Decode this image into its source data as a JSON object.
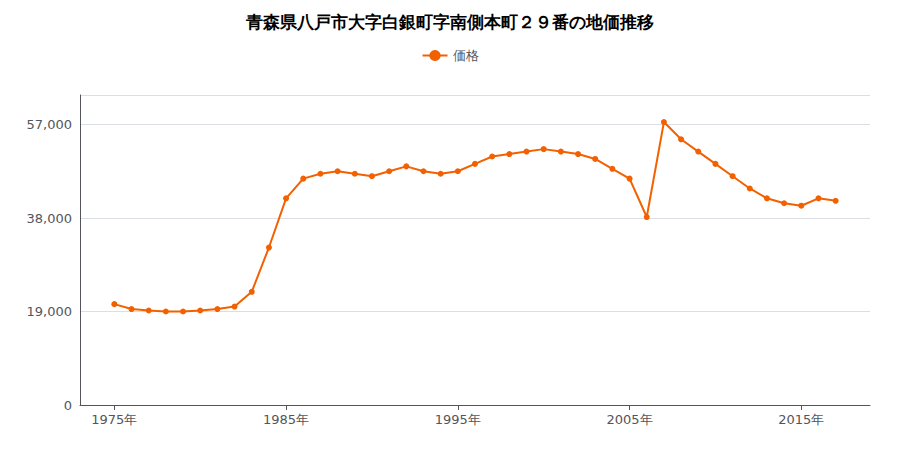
{
  "chart_data": {
    "type": "line",
    "title": "青森県八戸市大字白銀町字南側本町２９番の地価推移",
    "series": [
      {
        "name": "価格",
        "color": "#f26000",
        "marker": "circle",
        "values": [
          20500,
          19500,
          19200,
          19000,
          19000,
          19200,
          19500,
          20000,
          23000,
          32000,
          42000,
          46000,
          47000,
          47500,
          47000,
          46500,
          47500,
          48500,
          47500,
          47000,
          47500,
          49000,
          50500,
          51000,
          51500,
          52000,
          51500,
          51000,
          50000,
          48000,
          46000,
          38200,
          57500,
          54000,
          51500,
          49000,
          46500,
          44000,
          42000,
          41000,
          40500,
          42000,
          41500
        ]
      }
    ],
    "x": [
      1975,
      1976,
      1977,
      1978,
      1979,
      1980,
      1981,
      1982,
      1983,
      1984,
      1985,
      1986,
      1987,
      1988,
      1989,
      1990,
      1991,
      1992,
      1993,
      1994,
      1995,
      1996,
      1997,
      1998,
      1999,
      2000,
      2001,
      2002,
      2003,
      2004,
      2005,
      2006,
      2007,
      2008,
      2009,
      2010,
      2011,
      2012,
      2013,
      2014,
      2015,
      2016,
      2017
    ],
    "xlim": [
      1973,
      2019
    ],
    "xticks": [
      {
        "value": 1975,
        "label": "1975年"
      },
      {
        "value": 1985,
        "label": "1985年"
      },
      {
        "value": 1995,
        "label": "1995年"
      },
      {
        "value": 2005,
        "label": "2005年"
      },
      {
        "value": 2015,
        "label": "2015年"
      }
    ],
    "ylim": [
      0,
      63000
    ],
    "yticks": [
      0,
      {
        "value": 19000,
        "label": "19,000"
      },
      {
        "value": 38000,
        "label": "38,000"
      },
      {
        "value": 57000,
        "label": "57,000"
      }
    ],
    "grid": true,
    "legend": "top"
  }
}
